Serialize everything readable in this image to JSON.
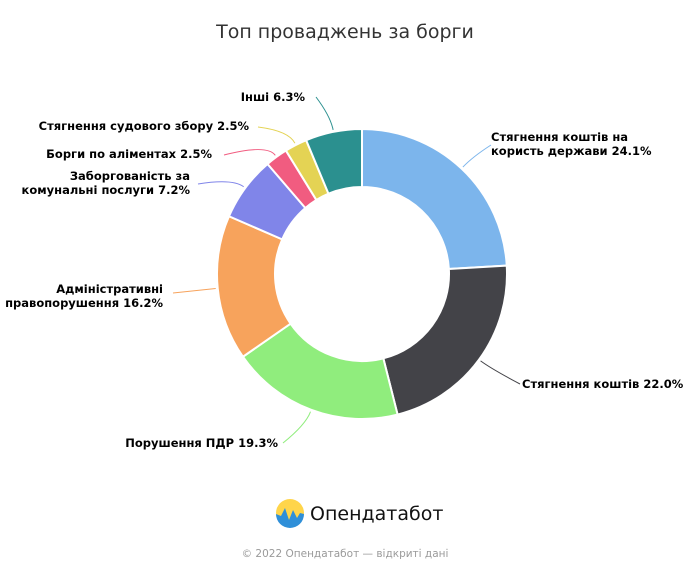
{
  "chart_data": {
    "type": "pie",
    "variant": "donut",
    "title": "Топ проваджень за борги",
    "start_angle_deg": 0,
    "direction": "clockwise",
    "slices": [
      {
        "label_lines": [
          "Стягнення коштів на",
          "користь держави 24.1%"
        ],
        "value": 24.1,
        "color": "#7cb5ec",
        "label_side": "right"
      },
      {
        "label_lines": [
          "Стягнення коштів 22.0%"
        ],
        "value": 22.0,
        "color": "#434348",
        "label_side": "right"
      },
      {
        "label_lines": [
          "Порушення ПДР 19.3%"
        ],
        "value": 19.3,
        "color": "#90ed7d",
        "label_side": "left"
      },
      {
        "label_lines": [
          "Адміністративні",
          "правопорушення 16.2%"
        ],
        "value": 16.2,
        "color": "#f7a35c",
        "label_side": "left"
      },
      {
        "label_lines": [
          "Заборгованість за",
          "комунальні послуги 7.2%"
        ],
        "value": 7.2,
        "color": "#8085e9",
        "label_side": "left"
      },
      {
        "label_lines": [
          "Борги по аліментах 2.5%"
        ],
        "value": 2.5,
        "color": "#f15c80",
        "label_side": "left"
      },
      {
        "label_lines": [
          "Стягнення судового збору 2.5%"
        ],
        "value": 2.5,
        "color": "#e4d354",
        "label_side": "left"
      },
      {
        "label_lines": [
          "Інші 6.3%"
        ],
        "value": 6.3,
        "color": "#2b908f",
        "label_side": "left"
      }
    ]
  },
  "brand": {
    "name": "Опендатабот",
    "logo_icon": "sun-over-waves-logo",
    "logo_colors": {
      "sun": "#ffd54a",
      "wave": "#2f8fd8"
    }
  },
  "footer": {
    "text": "© 2022 Опендатабот — відкриті дані"
  }
}
